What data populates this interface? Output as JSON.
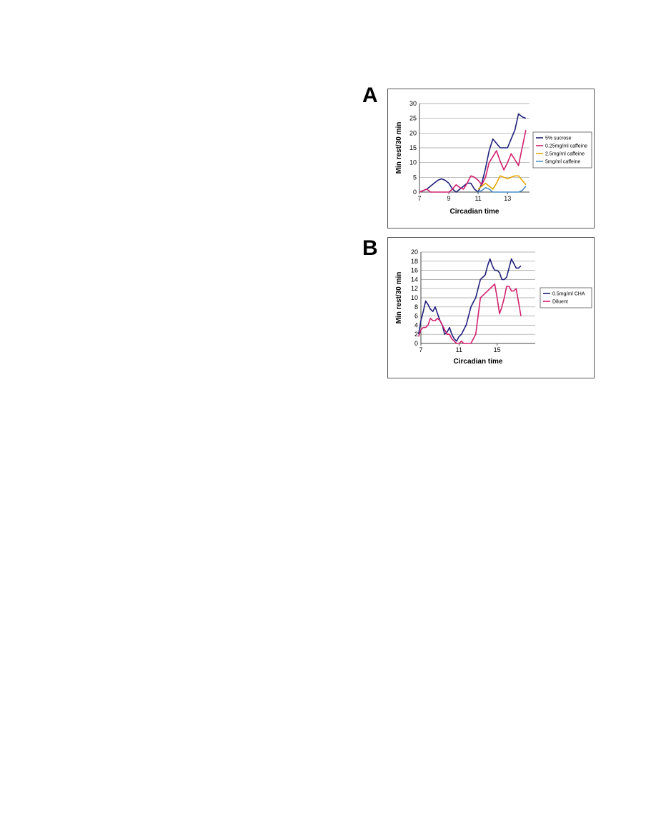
{
  "panels": [
    {
      "letter": "A"
    },
    {
      "letter": "B"
    }
  ],
  "chart_data": [
    {
      "type": "line",
      "xlabel": "Circadian time",
      "ylabel": "Min rest/30 min",
      "xlim": [
        7,
        14.5
      ],
      "ylim": [
        0,
        30
      ],
      "xticks": [
        7,
        9,
        11,
        13
      ],
      "yticks": [
        0,
        5,
        10,
        15,
        20,
        25,
        30
      ],
      "grid": true,
      "legend_position": "right",
      "series": [
        {
          "name": "5% sucrose",
          "color": "#1f1f7a",
          "x": [
            7,
            7.25,
            7.5,
            7.75,
            8,
            8.25,
            8.5,
            8.75,
            9,
            9.25,
            9.5,
            9.75,
            10,
            10.25,
            10.5,
            10.75,
            11,
            11.25,
            11.5,
            11.75,
            12,
            12.25,
            12.5,
            12.75,
            13,
            13.25,
            13.5,
            13.75,
            14,
            14.25
          ],
          "values": [
            0,
            0.5,
            1,
            2,
            3,
            4,
            4.5,
            4,
            3,
            1,
            0,
            1,
            2,
            3,
            3,
            1,
            0,
            3,
            8,
            14,
            18,
            16.5,
            15,
            15,
            15,
            18,
            21,
            26.5,
            25.5,
            25
          ]
        },
        {
          "name": "0.25mg/ml caffeine",
          "color": "#d0206e",
          "x": [
            7,
            7.25,
            7.5,
            7.75,
            8,
            8.25,
            8.5,
            8.75,
            9,
            9.25,
            9.5,
            9.75,
            10,
            10.25,
            10.5,
            10.75,
            11,
            11.25,
            11.5,
            11.75,
            12,
            12.25,
            12.5,
            12.75,
            13,
            13.25,
            13.5,
            13.75,
            14,
            14.25
          ],
          "values": [
            0,
            0.5,
            1,
            0,
            0,
            0,
            0,
            0,
            0,
            1,
            2.5,
            1.5,
            1,
            3,
            5.5,
            5,
            4,
            2.5,
            5,
            10,
            12,
            14,
            10.5,
            7.5,
            10,
            13,
            11,
            9,
            15,
            21
          ]
        },
        {
          "name": "2.5mg/ml caffeine",
          "color": "#e6a800",
          "x": [
            11,
            11.25,
            11.5,
            11.75,
            12,
            12.25,
            12.5,
            12.75,
            13,
            13.25,
            13.5,
            13.75,
            14,
            14.25
          ],
          "values": [
            1,
            2,
            3,
            2,
            1,
            3,
            5.5,
            5,
            4.5,
            5,
            5.5,
            5.5,
            4,
            2.5
          ]
        },
        {
          "name": "5mg/ml caffeine",
          "color": "#4a8fc4",
          "x": [
            11,
            11.25,
            11.5,
            11.75,
            12,
            12.25,
            12.5,
            12.75,
            13,
            13.25,
            13.5,
            13.75,
            14,
            14.25
          ],
          "values": [
            0,
            0.5,
            1.5,
            1,
            0,
            0,
            0,
            0,
            0,
            0,
            0,
            0,
            0.5,
            2
          ]
        }
      ]
    },
    {
      "type": "line",
      "xlabel": "Circadian time",
      "ylabel": "Min rest/30 min",
      "xlim": [
        7,
        19
      ],
      "ylim": [
        0,
        20
      ],
      "xticks": [
        7,
        11,
        15
      ],
      "yticks": [
        0,
        2,
        4,
        6,
        8,
        10,
        12,
        14,
        16,
        18,
        20
      ],
      "grid": true,
      "legend_position": "right",
      "series": [
        {
          "name": "0.5mg/ml CHA",
          "color": "#1f1f7a",
          "x": [
            6.75,
            7,
            7.25,
            7.5,
            7.75,
            8,
            8.25,
            8.5,
            8.75,
            9,
            9.25,
            9.5,
            9.75,
            10,
            10.25,
            10.5,
            10.75,
            11,
            11.25,
            11.5,
            11.75,
            12,
            12.25,
            12.5,
            12.75,
            13,
            13.25,
            13.5,
            13.75,
            14,
            14.25,
            14.5,
            14.75,
            15,
            15.25,
            15.5,
            15.75,
            16,
            16.25,
            16.5,
            16.75,
            17,
            17.25,
            17.5
          ],
          "values": [
            2,
            5,
            7,
            9.3,
            8.5,
            7.5,
            7,
            8,
            6.5,
            5,
            4,
            2,
            2.5,
            3.5,
            2,
            1,
            0.5,
            1.5,
            2,
            3,
            4,
            6,
            8,
            9,
            10,
            12,
            14,
            14.5,
            15,
            17,
            18.5,
            17,
            16,
            16,
            15.5,
            14,
            14,
            14.5,
            16.5,
            18.5,
            17.5,
            16.5,
            16.5,
            17
          ]
        },
        {
          "name": "Diluent",
          "color": "#d0206e",
          "x": [
            6.75,
            7,
            7.25,
            7.5,
            7.75,
            8,
            8.25,
            8.5,
            8.75,
            9,
            9.25,
            9.5,
            9.75,
            10,
            10.25,
            10.5,
            10.75,
            11,
            11.25,
            11.5,
            11.75,
            12,
            12.25,
            12.5,
            12.75,
            13,
            13.25,
            13.5,
            13.75,
            14,
            14.25,
            14.5,
            14.75,
            15,
            15.25,
            15.5,
            15.75,
            16,
            16.25,
            16.5,
            16.75,
            17,
            17.25,
            17.5
          ],
          "values": [
            1.5,
            3,
            3.5,
            3.5,
            4,
            5.5,
            5,
            5,
            5.5,
            5,
            4,
            3,
            2,
            2,
            1,
            0.5,
            0,
            0,
            0.5,
            0,
            0,
            0,
            0,
            1,
            2,
            6,
            10,
            10.5,
            11,
            11.5,
            12,
            12.5,
            13,
            10,
            6.5,
            8,
            10,
            12.5,
            12.5,
            11.5,
            11.5,
            12,
            9,
            6
          ]
        }
      ]
    }
  ]
}
